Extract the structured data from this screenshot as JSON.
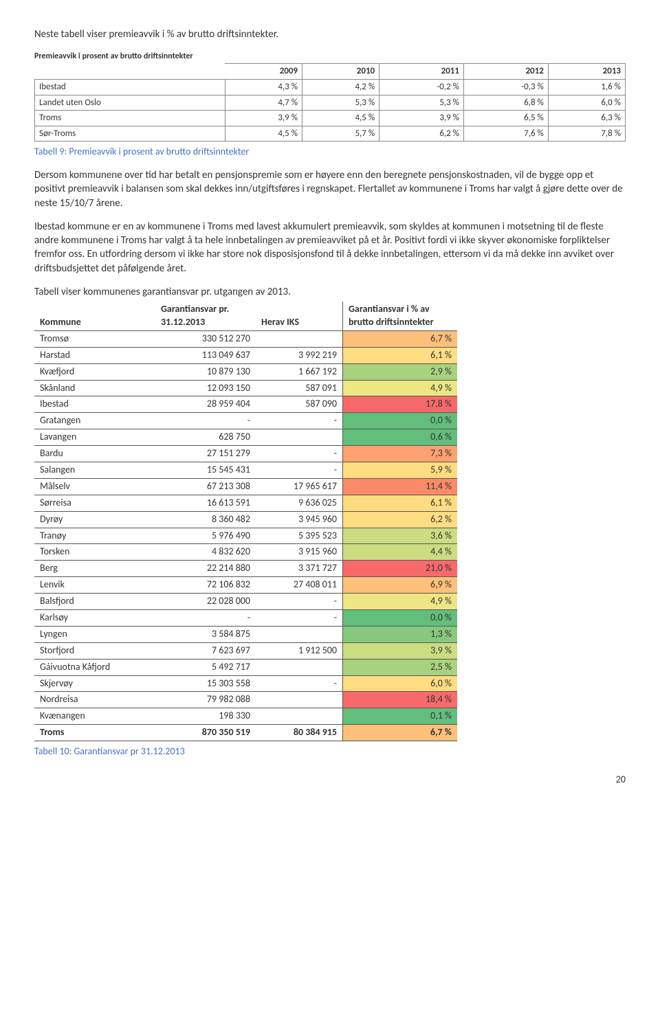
{
  "intro": "Neste tabell viser premieavvik i % av brutto driftsinntekter.",
  "t1": {
    "title": "Premieavvik i prosent av brutto driftsinntekter",
    "years": [
      "2009",
      "2010",
      "2011",
      "2012",
      "2013"
    ],
    "rows": [
      {
        "label": "Ibestad",
        "vals": [
          "4,3 %",
          "4,2 %",
          "-0,2 %",
          "-0,3 %",
          "1,6 %"
        ]
      },
      {
        "label": "Landet uten Oslo",
        "vals": [
          "4,7 %",
          "5,3 %",
          "5,3 %",
          "6,8 %",
          "6,0 %"
        ]
      },
      {
        "label": "Troms",
        "vals": [
          "3,9 %",
          "4,5 %",
          "3,9 %",
          "6,5 %",
          "6,3 %"
        ]
      },
      {
        "label": "Sør-Troms",
        "vals": [
          "4,5 %",
          "5,7 %",
          "6,2 %",
          "7,6 %",
          "7,8 %"
        ]
      }
    ]
  },
  "caption1": "Tabell 9: Premieavvik i prosent av brutto driftsinntekter",
  "p1": "Dersom kommunene over tid har betalt en pensjonspremie som er høyere enn den beregnete pensjonskostnaden, vil de bygge opp et positivt premieavvik i balansen som skal dekkes inn/utgiftsføres i regnskapet. Flertallet av kommunene i Troms har valgt å gjøre dette over de neste 15/10/7 årene.",
  "p2": "Ibestad kommune er en av kommunene i Troms med lavest akkumulert premieavvik, som skyldes at kommunen i motsetning til de fleste andre kommunene i Troms har valgt å ta hele innbetalingen av premieavviket på et år. Positivt fordi vi ikke skyver økonomiske forpliktelser fremfor oss. En utfordring dersom vi ikke har store nok disposisjonsfond til å dekke innbetalingen, ettersom vi da må dekke inn avviket over driftsbudsjettet det påfølgende året.",
  "p3": "Tabell viser kommunenes garantiansvar pr. utgangen av 2013.",
  "t2": {
    "headers": [
      "Kommune",
      "Garantiansvar pr. 31.12.2013",
      "Herav IKS",
      "Garantiansvar i % av brutto driftsinntekter"
    ],
    "heat": {
      "colors": {
        "g4": "#63be7b",
        "g3": "#86c97e",
        "g2": "#a9d27f",
        "g1": "#cbdc81",
        "y1": "#eee683",
        "y2": "#fedc81",
        "y3": "#fdbf79",
        "o1": "#fca16f",
        "o2": "#fb8a69",
        "r1": "#f8696b"
      }
    },
    "rows": [
      {
        "k": "Tromsø",
        "g": "330 512 270",
        "h": "",
        "p": "6,7 %",
        "c": "y3"
      },
      {
        "k": "Harstad",
        "g": "113 049 637",
        "h": "3 992 219",
        "p": "6,1 %",
        "c": "y2"
      },
      {
        "k": "Kvæfjord",
        "g": "10 879 130",
        "h": "1 667 192",
        "p": "2,9 %",
        "c": "g2"
      },
      {
        "k": "Skånland",
        "g": "12 093 150",
        "h": "587 091",
        "p": "4,9 %",
        "c": "y1"
      },
      {
        "k": "Ibestad",
        "g": "28 959 404",
        "h": "587 090",
        "p": "17,8 %",
        "c": "r1"
      },
      {
        "k": "Gratangen",
        "g": "-",
        "h": "-",
        "p": "0,0 %",
        "c": "g4"
      },
      {
        "k": "Lavangen",
        "g": "628 750",
        "h": "",
        "p": "0,6 %",
        "c": "g4"
      },
      {
        "k": "Bardu",
        "g": "27 151 279",
        "h": "-",
        "p": "7,3 %",
        "c": "o1"
      },
      {
        "k": "Salangen",
        "g": "15 545 431",
        "h": "-",
        "p": "5,9 %",
        "c": "y2"
      },
      {
        "k": "Målselv",
        "g": "67 213 308",
        "h": "17 965 617",
        "p": "11,4 %",
        "c": "o2"
      },
      {
        "k": "Sørreisa",
        "g": "16 613 591",
        "h": "9 636 025",
        "p": "6,1 %",
        "c": "y2"
      },
      {
        "k": "Dyrøy",
        "g": "8 360 482",
        "h": "3 945 960",
        "p": "6,2 %",
        "c": "y2"
      },
      {
        "k": "Tranøy",
        "g": "5 976 490",
        "h": "5 395 523",
        "p": "3,6 %",
        "c": "g1"
      },
      {
        "k": "Torsken",
        "g": "4 832 620",
        "h": "3 915 960",
        "p": "4,4 %",
        "c": "g1"
      },
      {
        "k": "Berg",
        "g": "22 214 880",
        "h": "3 371 727",
        "p": "21,0 %",
        "c": "r1"
      },
      {
        "k": "Lenvik",
        "g": "72 106 832",
        "h": "27 408 011",
        "p": "6,9 %",
        "c": "y3"
      },
      {
        "k": "Balsfjord",
        "g": "22 028 000",
        "h": "-",
        "p": "4,9 %",
        "c": "y1"
      },
      {
        "k": "Karlsøy",
        "g": "-",
        "h": "-",
        "p": "0,0 %",
        "c": "g4"
      },
      {
        "k": "Lyngen",
        "g": "3 584 875",
        "h": "",
        "p": "1,3 %",
        "c": "g3"
      },
      {
        "k": "Storfjord",
        "g": "7 623 697",
        "h": "1 912 500",
        "p": "3,9 %",
        "c": "g1"
      },
      {
        "k": "Gáivuotna Kåfjord",
        "g": "5 492 717",
        "h": "",
        "p": "2,5 %",
        "c": "g2"
      },
      {
        "k": "Skjervøy",
        "g": "15 303 558",
        "h": "-",
        "p": "6,0 %",
        "c": "y2"
      },
      {
        "k": "Nordreisa",
        "g": "79 982 088",
        "h": "",
        "p": "18,4 %",
        "c": "r1"
      },
      {
        "k": "Kvænangen",
        "g": "198 330",
        "h": "",
        "p": "0,1 %",
        "c": "g4"
      }
    ],
    "total": {
      "k": "Troms",
      "g": "870 350 519",
      "h": "80 384 915",
      "p": "6,7 %",
      "c": "y3"
    }
  },
  "caption2": "Tabell 10: Garantiansvar pr 31.12.2013",
  "pagenum": "20"
}
